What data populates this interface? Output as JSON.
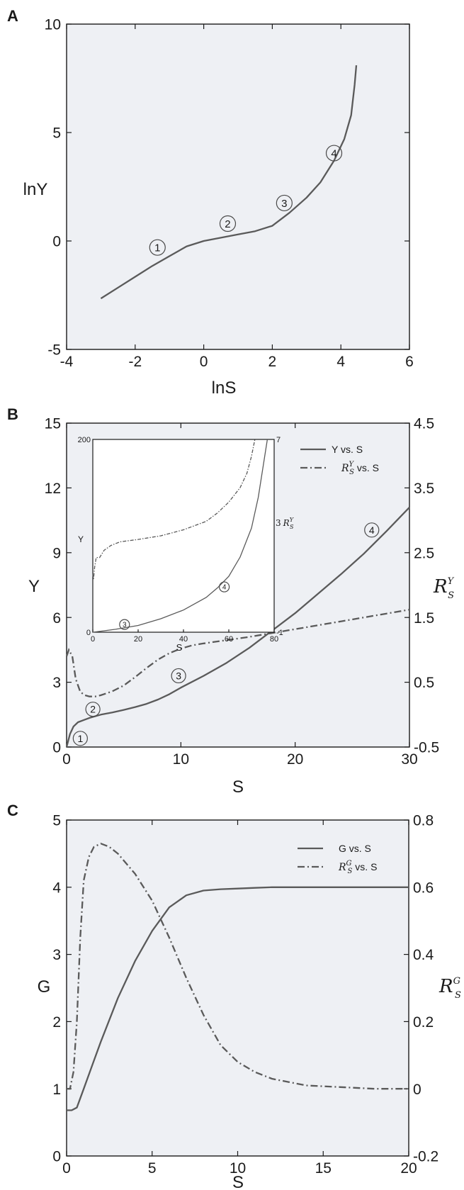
{
  "chart_data": [
    {
      "panel": "A",
      "type": "line",
      "xlabel": "lnS",
      "ylabel": "lnY",
      "xlim": [
        -4,
        6
      ],
      "ylim": [
        -5,
        10
      ],
      "xticks": [
        "-4",
        "-2",
        "0",
        "2",
        "4",
        "6"
      ],
      "yticks": [
        "-5",
        "0",
        "5",
        "10"
      ],
      "series": [
        {
          "style": "solid",
          "x": [
            -3.0,
            -2.5,
            -2.0,
            -1.5,
            -1.0,
            -0.5,
            0.0,
            0.5,
            1.0,
            1.5,
            2.0,
            2.5,
            3.0,
            3.4,
            3.8,
            4.1,
            4.3,
            4.4,
            4.45
          ],
          "y": [
            -2.65,
            -2.15,
            -1.65,
            -1.15,
            -0.7,
            -0.25,
            0.0,
            0.15,
            0.3,
            0.45,
            0.7,
            1.3,
            2.0,
            2.7,
            3.7,
            4.7,
            5.8,
            7.2,
            8.1
          ]
        }
      ],
      "markers": [
        {
          "label": "1",
          "x": -1.35,
          "y": -0.3
        },
        {
          "label": "2",
          "x": 0.7,
          "y": 0.8
        },
        {
          "label": "3",
          "x": 2.35,
          "y": 1.75
        },
        {
          "label": "4",
          "x": 3.8,
          "y": 4.05
        }
      ]
    },
    {
      "panel": "B",
      "type": "line",
      "xlabel": "S",
      "ylabel": "Y",
      "y2label": "R",
      "y2label_sub": "S",
      "y2label_sup": "Y",
      "xlim": [
        0,
        30
      ],
      "ylim": [
        0,
        15
      ],
      "y2lim": [
        -0.5,
        4.5
      ],
      "xticks": [
        "0",
        "10",
        "20",
        "30"
      ],
      "yticks": [
        "0",
        "3",
        "6",
        "9",
        "12",
        "15"
      ],
      "y2ticks": [
        "-0.5",
        "0.5",
        "1.5",
        "2.5",
        "3.5",
        "4.5"
      ],
      "legend": [
        {
          "style": "solid",
          "text": "Y vs. S"
        },
        {
          "style": "dashdot",
          "prefix": "R",
          "sub": "S",
          "sup": "Y",
          "text": " vs. S"
        }
      ],
      "legend_position": "top-right",
      "series": [
        {
          "axis": "left",
          "style": "solid",
          "x": [
            0,
            0.3,
            0.6,
            1,
            1.5,
            2,
            3,
            4,
            5,
            6,
            7,
            8,
            9,
            10,
            12,
            14,
            16,
            18,
            20,
            22,
            24,
            26,
            28,
            30
          ],
          "y": [
            0,
            0.6,
            0.95,
            1.15,
            1.25,
            1.35,
            1.5,
            1.6,
            1.72,
            1.85,
            2.0,
            2.2,
            2.45,
            2.75,
            3.3,
            3.9,
            4.6,
            5.4,
            6.2,
            7.1,
            8.0,
            8.95,
            10.0,
            11.1
          ]
        },
        {
          "axis": "right",
          "style": "dashdot",
          "x": [
            0,
            0.2,
            0.5,
            0.8,
            1.2,
            1.6,
            2,
            2.5,
            3,
            4,
            5,
            6,
            7,
            8,
            9,
            10,
            11,
            12,
            14,
            16,
            18,
            20,
            22,
            24,
            26,
            28,
            30
          ],
          "y": [
            0.9,
            1.0,
            0.9,
            0.55,
            0.35,
            0.3,
            0.28,
            0.28,
            0.3,
            0.36,
            0.45,
            0.58,
            0.72,
            0.85,
            0.95,
            1.02,
            1.07,
            1.1,
            1.15,
            1.2,
            1.26,
            1.32,
            1.38,
            1.44,
            1.5,
            1.56,
            1.62
          ]
        }
      ],
      "markers": [
        {
          "label": "1",
          "x": 1.2,
          "y": 0.4
        },
        {
          "label": "2",
          "x": 2.3,
          "y": 1.75
        },
        {
          "label": "3",
          "x": 9.8,
          "y": 3.3
        },
        {
          "label": "4",
          "x": 26.7,
          "y": 10.05
        }
      ],
      "inset": {
        "type": "line",
        "xlabel": "S",
        "ylabel": "Y",
        "y2label": "R",
        "y2label_sub": "S",
        "y2label_sup": "Y",
        "y2label_prefix": "3",
        "xlim": [
          0,
          80
        ],
        "ylim": [
          0,
          200
        ],
        "y2lim": [
          -1,
          7
        ],
        "xticks": [
          "0",
          "20",
          "40",
          "60",
          "80"
        ],
        "y_axis_labels": [
          "0",
          "200"
        ],
        "y2_axis_labels": [
          "-1",
          "7"
        ],
        "series": [
          {
            "axis": "left",
            "style": "solid",
            "x": [
              0,
              5,
              10,
              20,
              30,
              40,
              50,
              55,
              60,
              65,
              70,
              73,
              75,
              77
            ],
            "y": [
              0,
              1.5,
              3,
              7,
              14,
              23,
              36,
              46,
              58,
              78,
              108,
              140,
              170,
              200
            ]
          },
          {
            "axis": "right",
            "style": "dashdot",
            "x": [
              0,
              0.3,
              0.8,
              1.5,
              3,
              5,
              8,
              12,
              20,
              30,
              40,
              50,
              55,
              60,
              65,
              68,
              70,
              71.5
            ],
            "y": [
              1.4,
              1.2,
              1.7,
              2.1,
              2.1,
              2.4,
              2.6,
              2.75,
              2.85,
              3.0,
              3.25,
              3.6,
              3.95,
              4.4,
              5.0,
              5.6,
              6.3,
              7.0
            ]
          }
        ],
        "markers": [
          {
            "label": "3",
            "x": 14,
            "y": 8
          },
          {
            "label": "4",
            "x": 58,
            "y": 47
          }
        ]
      }
    },
    {
      "panel": "C",
      "type": "line",
      "xlabel": "S",
      "ylabel": "G",
      "y2label": "R",
      "y2label_sub": "S",
      "y2label_sup": "G",
      "xlim": [
        0,
        20
      ],
      "ylim": [
        0,
        5
      ],
      "y2lim": [
        -0.2,
        0.8
      ],
      "xticks": [
        "0",
        "5",
        "10",
        "15",
        "20"
      ],
      "yticks": [
        "0",
        "1",
        "2",
        "3",
        "4",
        "5"
      ],
      "y2ticks": [
        "-0.2",
        "0",
        "0.2",
        "0.4",
        "0.6",
        "0.8"
      ],
      "legend": [
        {
          "style": "solid",
          "text": "G vs. S"
        },
        {
          "style": "dashdot",
          "prefix": "R",
          "sub": "S",
          "sup": "G",
          "text": " vs. S"
        }
      ],
      "legend_position": "top-right",
      "series": [
        {
          "axis": "left",
          "style": "solid",
          "x": [
            0,
            0.3,
            0.6,
            1,
            1.5,
            2,
            3,
            4,
            5,
            6,
            7,
            8,
            9,
            10,
            11,
            12,
            13,
            14,
            15,
            16,
            17,
            18,
            19,
            20
          ],
          "y": [
            0.68,
            0.68,
            0.72,
            1.0,
            1.35,
            1.7,
            2.35,
            2.9,
            3.35,
            3.7,
            3.88,
            3.95,
            3.97,
            3.98,
            3.99,
            4.0,
            4.0,
            4.0,
            4.0,
            4.0,
            4.0,
            4.0,
            4.0,
            4.0
          ]
        },
        {
          "axis": "right",
          "style": "dashdot",
          "x": [
            0,
            0.2,
            0.4,
            0.6,
            0.8,
            1.0,
            1.3,
            1.6,
            2.0,
            2.5,
            3.0,
            4.0,
            5.0,
            6.0,
            7.0,
            8.0,
            9.0,
            10.0,
            11.0,
            12.0,
            13.0,
            14.0,
            16.0,
            18.0,
            20.0
          ],
          "y": [
            0.0,
            0.0,
            0.05,
            0.2,
            0.45,
            0.62,
            0.69,
            0.72,
            0.73,
            0.72,
            0.7,
            0.64,
            0.56,
            0.45,
            0.33,
            0.22,
            0.13,
            0.08,
            0.05,
            0.03,
            0.02,
            0.01,
            0.005,
            0.0,
            0.0
          ]
        }
      ]
    }
  ],
  "panel_labels": [
    "A",
    "B",
    "C"
  ]
}
